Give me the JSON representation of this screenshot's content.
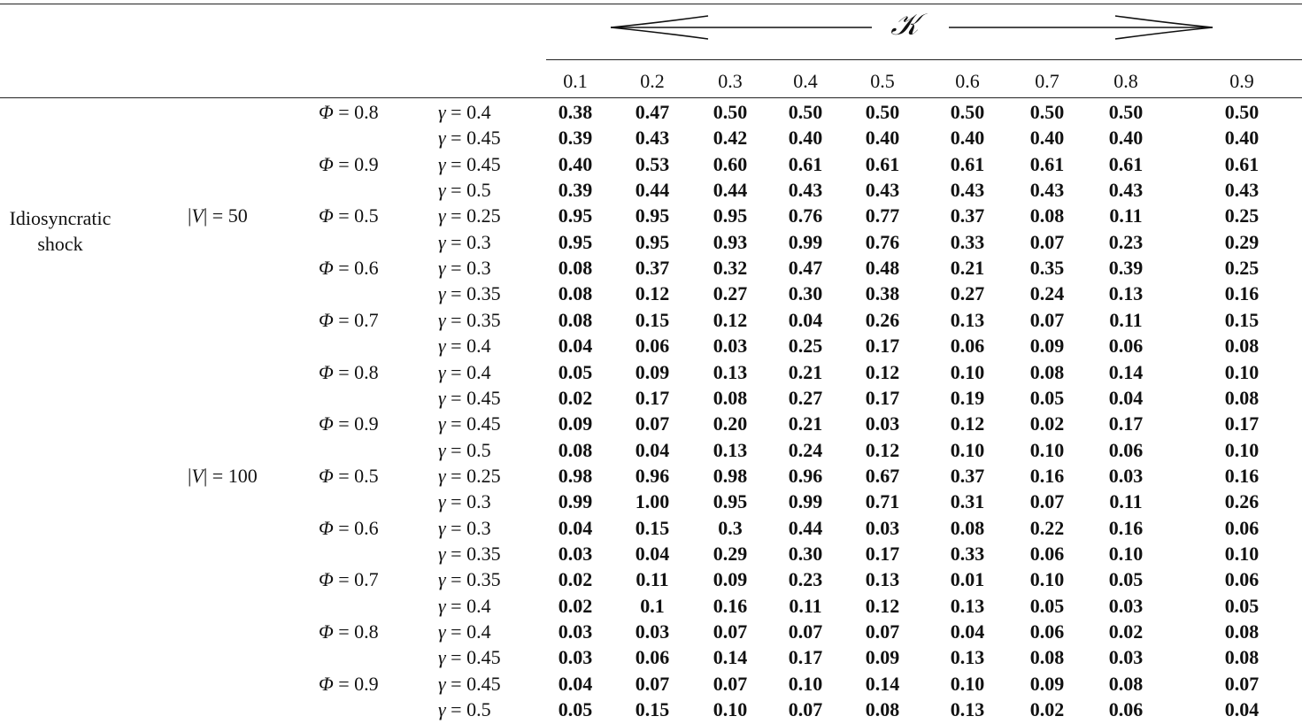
{
  "header": {
    "kappa_symbol": "𝒦",
    "k_values": [
      "0.1",
      "0.2",
      "0.3",
      "0.4",
      "0.5",
      "0.6",
      "0.7",
      "0.8",
      "0.9"
    ]
  },
  "category": {
    "line1": "Idiosyncratic",
    "line2": "shock"
  },
  "groups": [
    {
      "v_label": "|V| = 50",
      "rows": [
        {
          "phi": "Φ = 0.8",
          "gamma": "γ = 0.4",
          "values": [
            "0.38",
            "0.47",
            "0.50",
            "0.50",
            "0.50",
            "0.50",
            "0.50",
            "0.50",
            "0.50"
          ]
        },
        {
          "phi": "",
          "gamma": "γ = 0.45",
          "values": [
            "0.39",
            "0.43",
            "0.42",
            "0.40",
            "0.40",
            "0.40",
            "0.40",
            "0.40",
            "0.40"
          ]
        },
        {
          "phi": "Φ = 0.9",
          "gamma": "γ = 0.45",
          "values": [
            "0.40",
            "0.53",
            "0.60",
            "0.61",
            "0.61",
            "0.61",
            "0.61",
            "0.61",
            "0.61"
          ]
        },
        {
          "phi": "",
          "gamma": "γ = 0.5",
          "values": [
            "0.39",
            "0.44",
            "0.44",
            "0.43",
            "0.43",
            "0.43",
            "0.43",
            "0.43",
            "0.43"
          ]
        },
        {
          "phi": "Φ = 0.5",
          "gamma": "γ = 0.25",
          "values": [
            "0.95",
            "0.95",
            "0.95",
            "0.76",
            "0.77",
            "0.37",
            "0.08",
            "0.11",
            "0.25"
          ]
        },
        {
          "phi": "",
          "gamma": "γ = 0.3",
          "values": [
            "0.95",
            "0.95",
            "0.93",
            "0.99",
            "0.76",
            "0.33",
            "0.07",
            "0.23",
            "0.29"
          ]
        },
        {
          "phi": "Φ = 0.6",
          "gamma": "γ = 0.3",
          "values": [
            "0.08",
            "0.37",
            "0.32",
            "0.47",
            "0.48",
            "0.21",
            "0.35",
            "0.39",
            "0.25"
          ]
        },
        {
          "phi": "",
          "gamma": "γ = 0.35",
          "values": [
            "0.08",
            "0.12",
            "0.27",
            "0.30",
            "0.38",
            "0.27",
            "0.24",
            "0.13",
            "0.16"
          ]
        },
        {
          "phi": "Φ = 0.7",
          "gamma": "γ = 0.35",
          "values": [
            "0.08",
            "0.15",
            "0.12",
            "0.04",
            "0.26",
            "0.13",
            "0.07",
            "0.11",
            "0.15"
          ]
        },
        {
          "phi": "",
          "gamma": "γ = 0.4",
          "values": [
            "0.04",
            "0.06",
            "0.03",
            "0.25",
            "0.17",
            "0.06",
            "0.09",
            "0.06",
            "0.08"
          ]
        },
        {
          "phi": "Φ = 0.8",
          "gamma": "γ = 0.4",
          "values": [
            "0.05",
            "0.09",
            "0.13",
            "0.21",
            "0.12",
            "0.10",
            "0.08",
            "0.14",
            "0.10"
          ]
        },
        {
          "phi": "",
          "gamma": "γ = 0.45",
          "values": [
            "0.02",
            "0.17",
            "0.08",
            "0.27",
            "0.17",
            "0.19",
            "0.05",
            "0.04",
            "0.08"
          ]
        },
        {
          "phi": "Φ = 0.9",
          "gamma": "γ = 0.45",
          "values": [
            "0.09",
            "0.07",
            "0.20",
            "0.21",
            "0.03",
            "0.12",
            "0.02",
            "0.17",
            "0.17"
          ]
        },
        {
          "phi": "",
          "gamma": "γ = 0.5",
          "values": [
            "0.08",
            "0.04",
            "0.13",
            "0.24",
            "0.12",
            "0.10",
            "0.10",
            "0.06",
            "0.10"
          ]
        }
      ]
    },
    {
      "v_label": "|V| = 100",
      "rows": [
        {
          "phi": "Φ = 0.5",
          "gamma": "γ = 0.25",
          "values": [
            "0.98",
            "0.96",
            "0.98",
            "0.96",
            "0.67",
            "0.37",
            "0.16",
            "0.03",
            "0.16"
          ]
        },
        {
          "phi": "",
          "gamma": "γ = 0.3",
          "values": [
            "0.99",
            "1.00",
            "0.95",
            "0.99",
            "0.71",
            "0.31",
            "0.07",
            "0.11",
            "0.26"
          ]
        },
        {
          "phi": "Φ = 0.6",
          "gamma": "γ = 0.3",
          "values": [
            "0.04",
            "0.15",
            "0.3",
            "0.44",
            "0.03",
            "0.08",
            "0.22",
            "0.16",
            "0.06"
          ]
        },
        {
          "phi": "",
          "gamma": "γ = 0.35",
          "values": [
            "0.03",
            "0.04",
            "0.29",
            "0.30",
            "0.17",
            "0.33",
            "0.06",
            "0.10",
            "0.10"
          ]
        },
        {
          "phi": "Φ = 0.7",
          "gamma": "γ = 0.35",
          "values": [
            "0.02",
            "0.11",
            "0.09",
            "0.23",
            "0.13",
            "0.01",
            "0.10",
            "0.05",
            "0.06"
          ]
        },
        {
          "phi": "",
          "gamma": "γ = 0.4",
          "values": [
            "0.02",
            "0.1",
            "0.16",
            "0.11",
            "0.12",
            "0.13",
            "0.05",
            "0.03",
            "0.05"
          ]
        },
        {
          "phi": "Φ = 0.8",
          "gamma": "γ = 0.4",
          "values": [
            "0.03",
            "0.03",
            "0.07",
            "0.07",
            "0.07",
            "0.04",
            "0.06",
            "0.02",
            "0.08"
          ]
        },
        {
          "phi": "",
          "gamma": "γ = 0.45",
          "values": [
            "0.03",
            "0.06",
            "0.14",
            "0.17",
            "0.09",
            "0.13",
            "0.08",
            "0.03",
            "0.08"
          ]
        },
        {
          "phi": "Φ = 0.9",
          "gamma": "γ = 0.45",
          "values": [
            "0.04",
            "0.07",
            "0.07",
            "0.10",
            "0.14",
            "0.10",
            "0.09",
            "0.08",
            "0.07"
          ]
        },
        {
          "phi": "",
          "gamma": "γ = 0.5",
          "values": [
            "0.05",
            "0.15",
            "0.10",
            "0.07",
            "0.08",
            "0.13",
            "0.02",
            "0.06",
            "0.04"
          ]
        }
      ]
    }
  ]
}
